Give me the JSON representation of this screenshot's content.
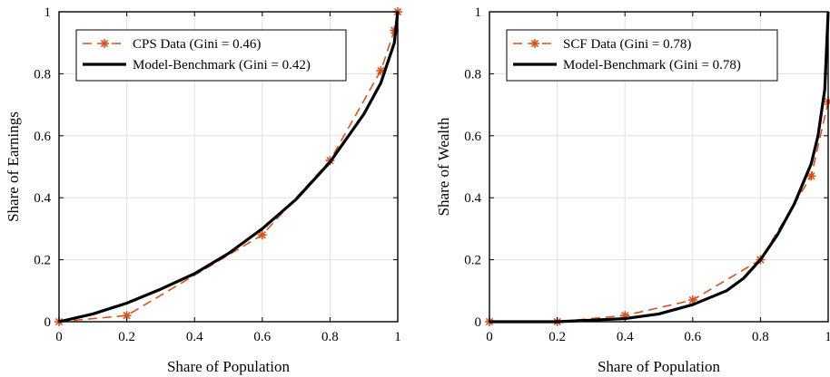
{
  "chart_data": [
    {
      "type": "line",
      "xlabel": "Share of Population",
      "ylabel": "Share of Earnings",
      "xlim": [
        0,
        1
      ],
      "ylim": [
        0,
        1
      ],
      "xticks": [
        0,
        0.2,
        0.4,
        0.6,
        0.8,
        1
      ],
      "yticks": [
        0,
        0.2,
        0.4,
        0.6,
        0.8,
        1
      ],
      "xtick_labels": [
        "0",
        "0.2",
        "0.4",
        "0.6",
        "0.8",
        "1"
      ],
      "ytick_labels": [
        "0",
        "0.2",
        "0.4",
        "0.6",
        "0.8",
        "1"
      ],
      "grid": true,
      "legend_position": "top-left",
      "series": [
        {
          "name": "CPS Data (Gini = 0.46)",
          "style": "dashed-asterisk",
          "color": "#D95319",
          "x": [
            0,
            0.2,
            0.6,
            0.8,
            0.95,
            0.99,
            1
          ],
          "y": [
            0,
            0.02,
            0.28,
            0.52,
            0.81,
            0.94,
            1
          ]
        },
        {
          "name": "Model-Benchmark (Gini = 0.42)",
          "style": "solid-thick",
          "color": "#000000",
          "x": [
            0,
            0.1,
            0.2,
            0.3,
            0.4,
            0.5,
            0.6,
            0.7,
            0.8,
            0.9,
            0.95,
            0.99,
            1
          ],
          "y": [
            0,
            0.025,
            0.06,
            0.105,
            0.155,
            0.22,
            0.3,
            0.395,
            0.515,
            0.67,
            0.77,
            0.9,
            1
          ]
        }
      ]
    },
    {
      "type": "line",
      "xlabel": "Share of Population",
      "ylabel": "Share of Wealth",
      "xlim": [
        0,
        1
      ],
      "ylim": [
        0,
        1
      ],
      "xticks": [
        0,
        0.2,
        0.4,
        0.6,
        0.8,
        1
      ],
      "yticks": [
        0,
        0.2,
        0.4,
        0.6,
        0.8,
        1
      ],
      "xtick_labels": [
        "0",
        "0.2",
        "0.4",
        "0.6",
        "0.8",
        "1"
      ],
      "ytick_labels": [
        "0",
        "0.2",
        "0.4",
        "0.6",
        "0.8",
        "1"
      ],
      "grid": true,
      "legend_position": "top-left",
      "series": [
        {
          "name": "SCF Data (Gini = 0.78)",
          "style": "dashed-asterisk",
          "color": "#D95319",
          "x": [
            0,
            0.2,
            0.4,
            0.6,
            0.8,
            0.95,
            1
          ],
          "y": [
            0,
            0,
            0.02,
            0.07,
            0.2,
            0.47,
            0.71
          ]
        },
        {
          "name": "Model-Benchmark (Gini = 0.78)",
          "style": "solid-thick",
          "color": "#000000",
          "x": [
            0,
            0.2,
            0.3,
            0.4,
            0.5,
            0.6,
            0.7,
            0.75,
            0.8,
            0.85,
            0.9,
            0.95,
            0.97,
            0.99,
            1
          ],
          "y": [
            0,
            0,
            0.005,
            0.01,
            0.025,
            0.055,
            0.1,
            0.14,
            0.2,
            0.28,
            0.38,
            0.51,
            0.6,
            0.75,
            1
          ]
        }
      ]
    }
  ]
}
